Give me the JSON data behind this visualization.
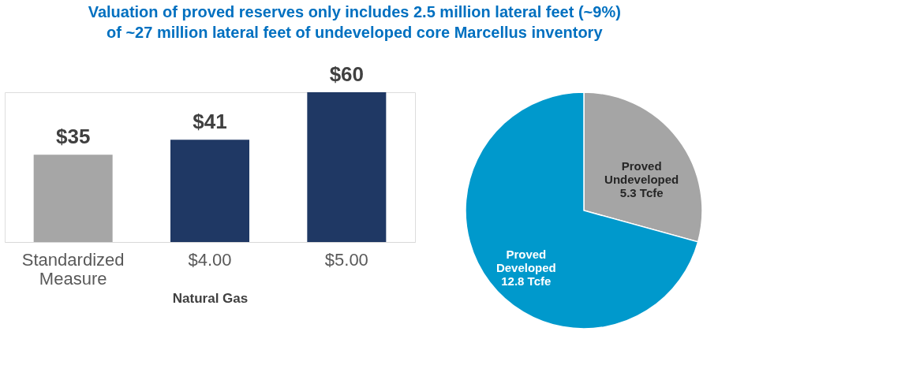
{
  "chart_data": [
    {
      "type": "bar",
      "title": "Valuation of proved reserves only includes 2.5 million lateral feet (~9%) of ~27 million lateral feet of undeveloped core Marcellus inventory",
      "categories": [
        "Standardized Measure",
        "$4.00",
        "$5.00"
      ],
      "values": [
        35,
        41,
        60
      ],
      "colors": [
        "#a6a6a6",
        "#1f3864",
        "#1f3864"
      ],
      "value_labels": [
        "$35",
        "$41",
        "$60"
      ],
      "xlabel": "Natural Gas"
    },
    {
      "type": "pie",
      "categories": [
        "Proved Undeveloped",
        "Proved Developed"
      ],
      "values": [
        5.3,
        12.8
      ],
      "colors": [
        "#a5a5a5",
        "#0099cc"
      ],
      "value_labels": [
        "5.3 Tcfe",
        "12.8 Tcfe"
      ]
    }
  ]
}
